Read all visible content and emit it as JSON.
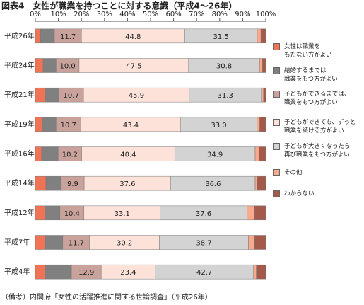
{
  "chart_data": {
    "type": "stacked-bar-horizontal",
    "title": "図表4　女性が職業を持つことに対する意識（平成4～26年）",
    "note": "（備考）内閣府「女性の活躍推進に関する世論調査」（平成26年）",
    "categories": [
      "平成26年",
      "平成24年",
      "平成21年",
      "平成19年",
      "平成16年",
      "平成14年",
      "平成12年",
      "平成7年",
      "平成4年"
    ],
    "xlim": [
      0,
      100
    ],
    "xticks": [
      {
        "value": 0,
        "label": "0%"
      },
      {
        "value": 10,
        "label": "10%"
      },
      {
        "value": 20,
        "label": "20%"
      },
      {
        "value": 30,
        "label": "30%"
      },
      {
        "value": 40,
        "label": "40%"
      },
      {
        "value": 50,
        "label": "50%"
      },
      {
        "value": 60,
        "label": "60%"
      },
      {
        "value": 70,
        "label": "70%"
      },
      {
        "value": 80,
        "label": "80%"
      },
      {
        "value": 90,
        "label": "90%"
      },
      {
        "value": 100,
        "label": "100%"
      }
    ],
    "series": [
      {
        "name": "女性は職業を\nもたない方がよい",
        "color": "#f07356",
        "values": [
          2.2,
          3.4,
          4.1,
          3.1,
          2.7,
          4.6,
          4.1,
          4.4,
          4.1
        ]
      },
      {
        "name": "結婚するまでは\n職業をもつ方がよい",
        "color": "#808080",
        "values": [
          6.1,
          5.6,
          6.1,
          5.9,
          7.2,
          6.7,
          6.6,
          7.5,
          11.6
        ]
      },
      {
        "name": "子どもができるまでは、\n職業をもつ方がよい",
        "color": "#c9a39b",
        "values": [
          11.7,
          10.0,
          10.7,
          10.7,
          10.2,
          9.9,
          10.4,
          11.7,
          12.9
        ],
        "value_labels": [
          "11.7",
          "10.0",
          "10.7",
          "10.7",
          "10.2",
          "9.9",
          "10.4",
          "11.7",
          "12.9"
        ]
      },
      {
        "name": "子どもができても、ずっと\n職業を続ける方がよい",
        "color": "#fde2da",
        "values": [
          44.8,
          47.5,
          45.9,
          43.4,
          40.4,
          37.6,
          33.1,
          30.2,
          23.4
        ],
        "value_labels": [
          "44.8",
          "47.5",
          "45.9",
          "43.4",
          "40.4",
          "37.6",
          "33.1",
          "30.2",
          "23.4"
        ]
      },
      {
        "name": "子どもが大きくなったら\n再び職業をもつ方がよい",
        "color": "#d3d3d3",
        "values": [
          31.5,
          30.8,
          31.3,
          33.0,
          34.9,
          36.6,
          37.6,
          38.7,
          42.7
        ],
        "value_labels": [
          "31.5",
          "30.8",
          "31.3",
          "33.0",
          "34.9",
          "36.6",
          "37.6",
          "38.7",
          "42.7"
        ]
      },
      {
        "name": "その他",
        "color": "#f9a98c",
        "values": [
          1.6,
          1.3,
          0.9,
          1.3,
          1.6,
          1.0,
          3.3,
          2.7,
          1.2
        ]
      },
      {
        "name": "わからない",
        "color": "#a35a4b",
        "values": [
          2.1,
          1.4,
          1.0,
          2.6,
          3.0,
          3.6,
          4.9,
          4.8,
          4.1
        ]
      }
    ]
  }
}
